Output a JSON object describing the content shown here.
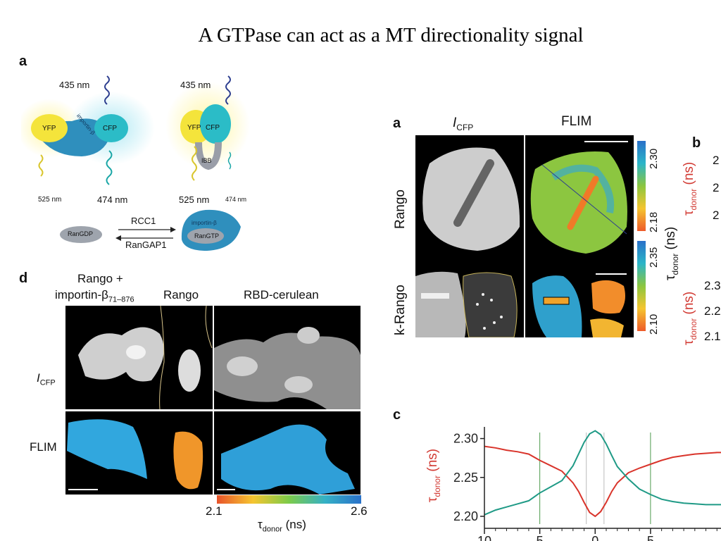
{
  "slide": {
    "title": "A GTPase can act as a MT directionality signal"
  },
  "left_figure": {
    "panel_a_label": "a",
    "wavelength_top_left": "435 nm",
    "wavelength_top_right": "435 nm",
    "yfp": "YFP",
    "cfp": "CFP",
    "importin": "importin-β",
    "ibb": "IBB",
    "wl_525_left": "525 nm",
    "wl_474_left": "474 nm",
    "wl_525_right": "525 nm",
    "wl_474_right": "474 nm",
    "rangdp": "RanGDP",
    "rcc1": "RCC1",
    "rangap1": "RanGAP1",
    "rangtp": "RanGTP",
    "importin_b": "importin-β",
    "panel_d_label": "d",
    "col1_line1": "Rango +",
    "col1_line2_main": "importin-β",
    "col1_line2_sub": "71–876",
    "col2": "Rango",
    "col3": "RBD-cerulean",
    "row1_main": "I",
    "row1_sub": "CFP",
    "row2": "FLIM",
    "scale_min": "2.1",
    "scale_max": "2.6",
    "scale_label_main": "τ",
    "scale_label_sub": "donor",
    "scale_label_unit": " (ns)"
  },
  "right_figure": {
    "panel_a_label": "a",
    "col1_main": "I",
    "col1_sub": "CFP",
    "col2": "FLIM",
    "panel_b_label": "b",
    "row1": "Rango",
    "row2": "k-Rango",
    "cbar1_top": "2.30",
    "cbar1_bottom": "2.18",
    "cbar2_top": "2.35",
    "cbar2_bottom": "2.10",
    "cbar_axis_main": "τ",
    "cbar_axis_sub": "donor",
    "cbar_axis_unit": " (ns)",
    "b_axis_main": "τ",
    "b_axis_sub": "donor",
    "b_axis_unit": " (ns)",
    "b_tick_1": "2",
    "b_tick_2": "2",
    "b_tick_3": "2",
    "b_tick_4": "2.3",
    "b_tick_5": "2.2",
    "b_tick_6": "2.1",
    "panel_c_label": "c"
  },
  "chart_data": {
    "type": "line",
    "title": "",
    "ylabel": "τdonor (ns)",
    "xlabel": "",
    "ylim": [
      2.19,
      2.315
    ],
    "xlim": [
      -10,
      12
    ],
    "yticks": [
      2.2,
      2.25,
      2.3
    ],
    "ytick_labels": [
      "2.20",
      "2.25",
      "2.30"
    ],
    "xticks": [
      -10,
      -5,
      0,
      5
    ],
    "xtick_labels": [
      "10",
      "5",
      "0",
      "5"
    ],
    "vlines_green": [
      -5,
      5
    ],
    "vlines_gray": [
      -0.8,
      0.8
    ],
    "series": [
      {
        "color": "#d9342b",
        "x": [
          -10,
          -9,
          -8,
          -7,
          -6,
          -5,
          -4,
          -3,
          -2,
          -1.5,
          -1,
          -0.5,
          0,
          0.5,
          1,
          1.5,
          2,
          3,
          4,
          5,
          6,
          7,
          8,
          9,
          10,
          11,
          12
        ],
        "y": [
          2.29,
          2.288,
          2.285,
          2.283,
          2.28,
          2.272,
          2.265,
          2.258,
          2.243,
          2.232,
          2.218,
          2.205,
          2.2,
          2.206,
          2.218,
          2.232,
          2.243,
          2.256,
          2.262,
          2.267,
          2.272,
          2.276,
          2.278,
          2.28,
          2.281,
          2.282,
          2.282
        ]
      },
      {
        "color": "#1f9a86",
        "x": [
          -10,
          -9,
          -8,
          -7,
          -6,
          -5,
          -4,
          -3,
          -2,
          -1.5,
          -1,
          -0.5,
          0,
          0.5,
          1,
          1.5,
          2,
          3,
          4,
          5,
          6,
          7,
          8,
          9,
          10,
          11,
          12
        ],
        "y": [
          2.202,
          2.208,
          2.212,
          2.216,
          2.22,
          2.23,
          2.238,
          2.246,
          2.265,
          2.28,
          2.295,
          2.306,
          2.31,
          2.305,
          2.293,
          2.278,
          2.264,
          2.248,
          2.235,
          2.228,
          2.222,
          2.219,
          2.217,
          2.216,
          2.215,
          2.215,
          2.215
        ]
      }
    ]
  }
}
